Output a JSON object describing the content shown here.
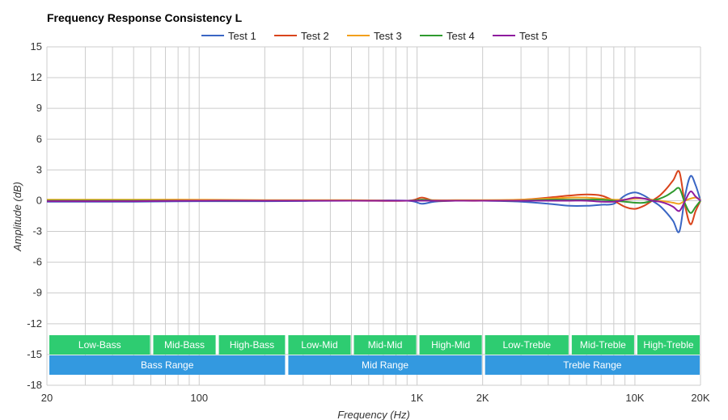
{
  "chart_data": {
    "type": "line",
    "title": "Frequency Response Consistency L",
    "xlabel": "Frequency (Hz)",
    "ylabel": "Amplitude (dB)",
    "xscale": "log",
    "xlim": [
      20,
      20000
    ],
    "ylim": [
      -18,
      15
    ],
    "yticks": [
      15,
      12,
      9,
      6,
      3,
      0,
      -3,
      -6,
      -9,
      -12,
      -15,
      -18
    ],
    "xticks": [
      {
        "value": 20,
        "label": "20"
      },
      {
        "value": 100,
        "label": "100"
      },
      {
        "value": 1000,
        "label": "1K"
      },
      {
        "value": 2000,
        "label": "2K"
      },
      {
        "value": 10000,
        "label": "10K"
      },
      {
        "value": 20000,
        "label": "20K"
      }
    ],
    "grid": true,
    "legend_position": "top-center",
    "x": [
      20,
      50,
      100,
      200,
      500,
      900,
      1050,
      1200,
      1500,
      2000,
      3000,
      4000,
      5000,
      6000,
      7000,
      8000,
      9000,
      10000,
      11000,
      12000,
      13000,
      14000,
      15000,
      16000,
      17000,
      18000,
      19000,
      20000
    ],
    "series": [
      {
        "name": "Test 1",
        "color": "#3a66c4",
        "values": [
          -0.1,
          -0.1,
          -0.05,
          -0.05,
          0.0,
          0.0,
          -0.3,
          -0.1,
          0.0,
          0.0,
          -0.1,
          -0.3,
          -0.5,
          -0.5,
          -0.4,
          -0.3,
          0.5,
          0.8,
          0.5,
          0.0,
          -0.5,
          -1.2,
          -2.0,
          -3.0,
          0.5,
          2.4,
          1.5,
          0.0
        ]
      },
      {
        "name": "Test 2",
        "color": "#d9441c",
        "values": [
          0.0,
          0.0,
          0.0,
          0.0,
          0.0,
          0.0,
          0.3,
          0.0,
          0.0,
          0.0,
          0.1,
          0.3,
          0.5,
          0.6,
          0.5,
          0.0,
          -0.6,
          -0.8,
          -0.5,
          0.0,
          0.5,
          1.2,
          2.0,
          2.8,
          -0.5,
          -2.3,
          -1.0,
          0.0
        ]
      },
      {
        "name": "Test 3",
        "color": "#f2a01c",
        "values": [
          0.1,
          0.1,
          0.1,
          0.05,
          0.05,
          0.0,
          0.1,
          0.05,
          0.05,
          0.05,
          0.1,
          0.2,
          0.3,
          0.3,
          0.2,
          0.1,
          0.1,
          0.2,
          0.2,
          0.1,
          0.0,
          -0.1,
          -0.2,
          -0.3,
          0.0,
          0.2,
          0.3,
          0.1
        ]
      },
      {
        "name": "Test 4",
        "color": "#2f9a2f",
        "values": [
          0.0,
          0.0,
          0.0,
          0.0,
          0.0,
          0.0,
          0.1,
          0.0,
          0.0,
          0.0,
          0.0,
          0.1,
          0.1,
          0.1,
          0.1,
          0.0,
          -0.1,
          -0.2,
          -0.2,
          0.0,
          0.2,
          0.5,
          0.9,
          1.2,
          -0.3,
          -1.2,
          -0.6,
          0.0
        ]
      },
      {
        "name": "Test 5",
        "color": "#8e1b9e",
        "values": [
          -0.05,
          -0.05,
          0.0,
          0.0,
          0.0,
          0.0,
          0.0,
          0.0,
          0.0,
          0.0,
          0.0,
          0.0,
          0.0,
          0.0,
          -0.1,
          -0.1,
          0.1,
          0.3,
          0.2,
          0.0,
          -0.1,
          -0.3,
          -0.6,
          -1.0,
          0.0,
          0.9,
          0.4,
          0.0
        ]
      }
    ],
    "range_bands": [
      {
        "label": "Low-Bass",
        "from": 20,
        "to": 60,
        "color": "#2ecc71",
        "row": 1
      },
      {
        "label": "Mid-Bass",
        "from": 60,
        "to": 120,
        "color": "#2ecc71",
        "row": 1
      },
      {
        "label": "High-Bass",
        "from": 120,
        "to": 250,
        "color": "#2ecc71",
        "row": 1
      },
      {
        "label": "Low-Mid",
        "from": 250,
        "to": 500,
        "color": "#2ecc71",
        "row": 1
      },
      {
        "label": "Mid-Mid",
        "from": 500,
        "to": 1000,
        "color": "#2ecc71",
        "row": 1
      },
      {
        "label": "High-Mid",
        "from": 1000,
        "to": 2000,
        "color": "#2ecc71",
        "row": 1
      },
      {
        "label": "Low-Treble",
        "from": 2000,
        "to": 5000,
        "color": "#2ecc71",
        "row": 1
      },
      {
        "label": "Mid-Treble",
        "from": 5000,
        "to": 10000,
        "color": "#2ecc71",
        "row": 1
      },
      {
        "label": "High-Treble",
        "from": 10000,
        "to": 20000,
        "color": "#2ecc71",
        "row": 1
      },
      {
        "label": "Bass Range",
        "from": 20,
        "to": 250,
        "color": "#3399e0",
        "row": 2
      },
      {
        "label": "Mid Range",
        "from": 250,
        "to": 2000,
        "color": "#3399e0",
        "row": 2
      },
      {
        "label": "Treble Range",
        "from": 2000,
        "to": 20000,
        "color": "#3399e0",
        "row": 2
      }
    ]
  }
}
